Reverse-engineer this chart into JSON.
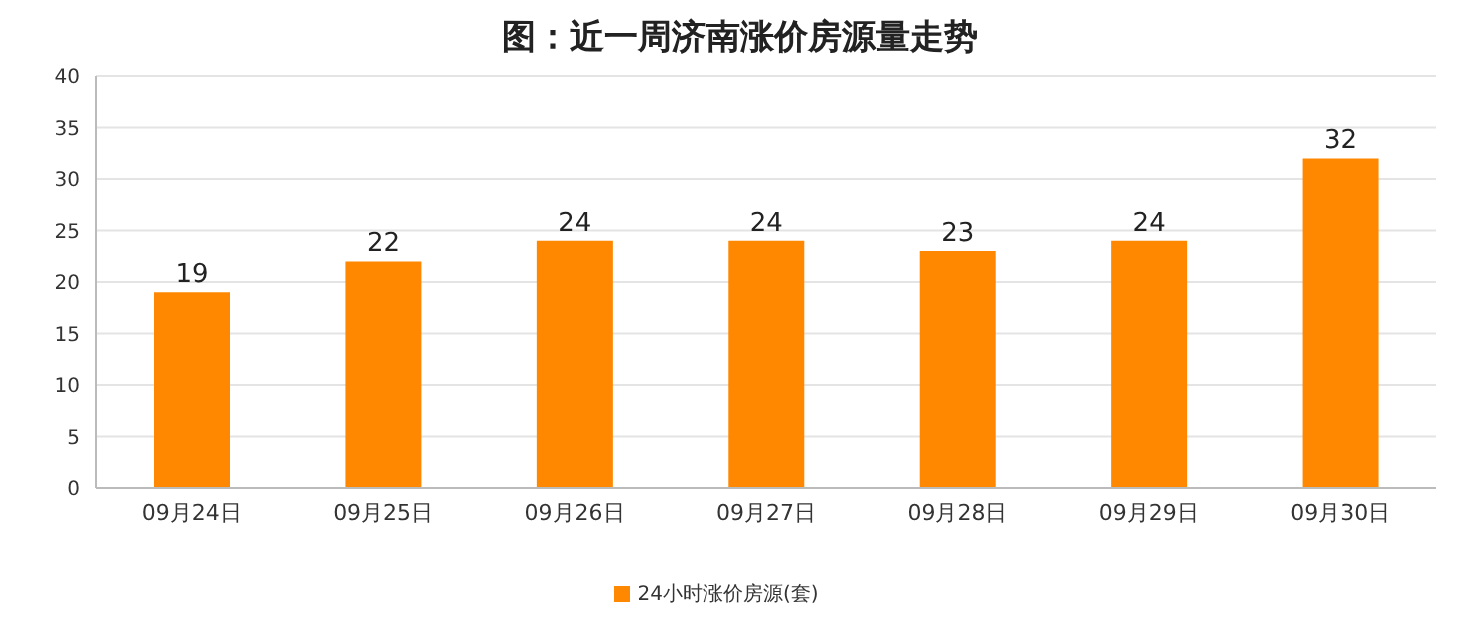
{
  "chart_data": {
    "type": "bar",
    "title": "图：近一周济南涨价房源量走势",
    "categories": [
      "09月24日",
      "09月25日",
      "09月26日",
      "09月27日",
      "09月28日",
      "09月29日",
      "09月30日"
    ],
    "series": [
      {
        "name": "24小时涨价房源(套)",
        "color": "#ff8800",
        "values": [
          19,
          22,
          24,
          24,
          23,
          24,
          32
        ]
      }
    ],
    "ylim": [
      0,
      40
    ],
    "yticks": [
      0,
      5,
      10,
      15,
      20,
      25,
      30,
      35,
      40
    ],
    "grid": "y",
    "legend": "bottom",
    "data_labels": true
  }
}
